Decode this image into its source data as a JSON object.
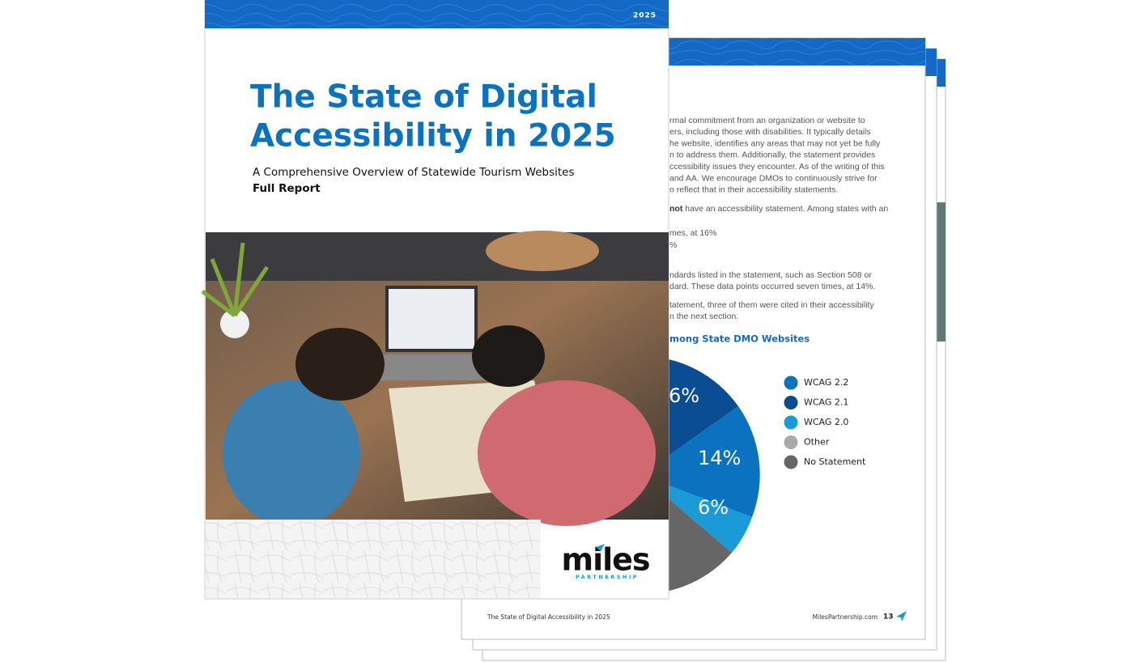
{
  "cover": {
    "year": "2025",
    "title_lines": [
      "The State of Digital",
      "Accessibility in 2025"
    ],
    "subtitle": "A Comprehensive Overview of Statewide Tourism Websites",
    "report_type": "Full Report",
    "logo": {
      "name": "miles",
      "tagline": "PARTNERSHIP"
    }
  },
  "inner_page": {
    "paragraph_lines": [
      "rmal commitment from an organization or website to",
      "ers, including those with disabilities. It typically details",
      "he website, identifies any areas that may not yet be fully",
      "n to address them. Additionally, the statement provides",
      "ccessibility issues they encounter. As of the writing of this",
      "and AA. We encourage DMOs to continuously strive for",
      "o reflect that in their accessibility statements."
    ],
    "bold_line": {
      "bold": "not",
      "text": " have an accessibility statement. Among states with an"
    },
    "list_lines": [
      "mes, at 16%",
      "%"
    ],
    "more_lines": [
      "ndards listed in the statement, such as Section 508 or",
      "dard. These data points occurred seven times, at 14%."
    ],
    "last_lines": [
      "tatement, three of them were cited in their accessibility",
      "n the next section."
    ],
    "chart_title": "mong State DMO Websites",
    "pie_labels": [
      "6%",
      "14%",
      "6%"
    ],
    "legend": [
      "WCAG 2.2",
      "WCAG 2.1",
      "WCAG 2.0",
      "Other",
      "No Statement"
    ],
    "footer": {
      "left": "The State of Digital Accessibility in 2025",
      "site": "MilesPartnership.com",
      "page": "13"
    }
  }
}
